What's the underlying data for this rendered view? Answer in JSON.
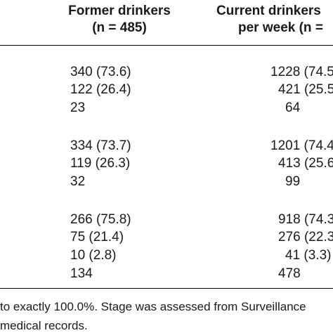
{
  "header": {
    "col_former_line1": "Former drinkers",
    "col_former_line2": "(n = 485)",
    "col_current_line1": "Current drinkers",
    "col_current_line2": "per week (n ="
  },
  "groups": [
    {
      "rows": [
        {
          "former": "340 (73.6)",
          "current": "1228 (74.5"
        },
        {
          "former": "122 (26.4)",
          "current": "421 (25.5"
        },
        {
          "former": "23",
          "current": "64"
        }
      ]
    },
    {
      "rows": [
        {
          "former": "334 (73.7)",
          "current": "1201 (74.4"
        },
        {
          "former": "119 (26.3)",
          "current": "413 (25.6"
        },
        {
          "former": "32",
          "current": "99"
        }
      ]
    },
    {
      "rows": [
        {
          "former": "266 (75.8)",
          "current": "918 (74.3"
        },
        {
          "former": "75 (21.4)",
          "current": "276 (22.3"
        },
        {
          "former": "10 (2.8)",
          "current": "41 (3.3)"
        },
        {
          "former": "134",
          "current": "478"
        }
      ]
    }
  ],
  "footnote": {
    "line1": "to exactly 100.0%. Stage was assessed from Surveillance",
    "line2": "medical records."
  }
}
